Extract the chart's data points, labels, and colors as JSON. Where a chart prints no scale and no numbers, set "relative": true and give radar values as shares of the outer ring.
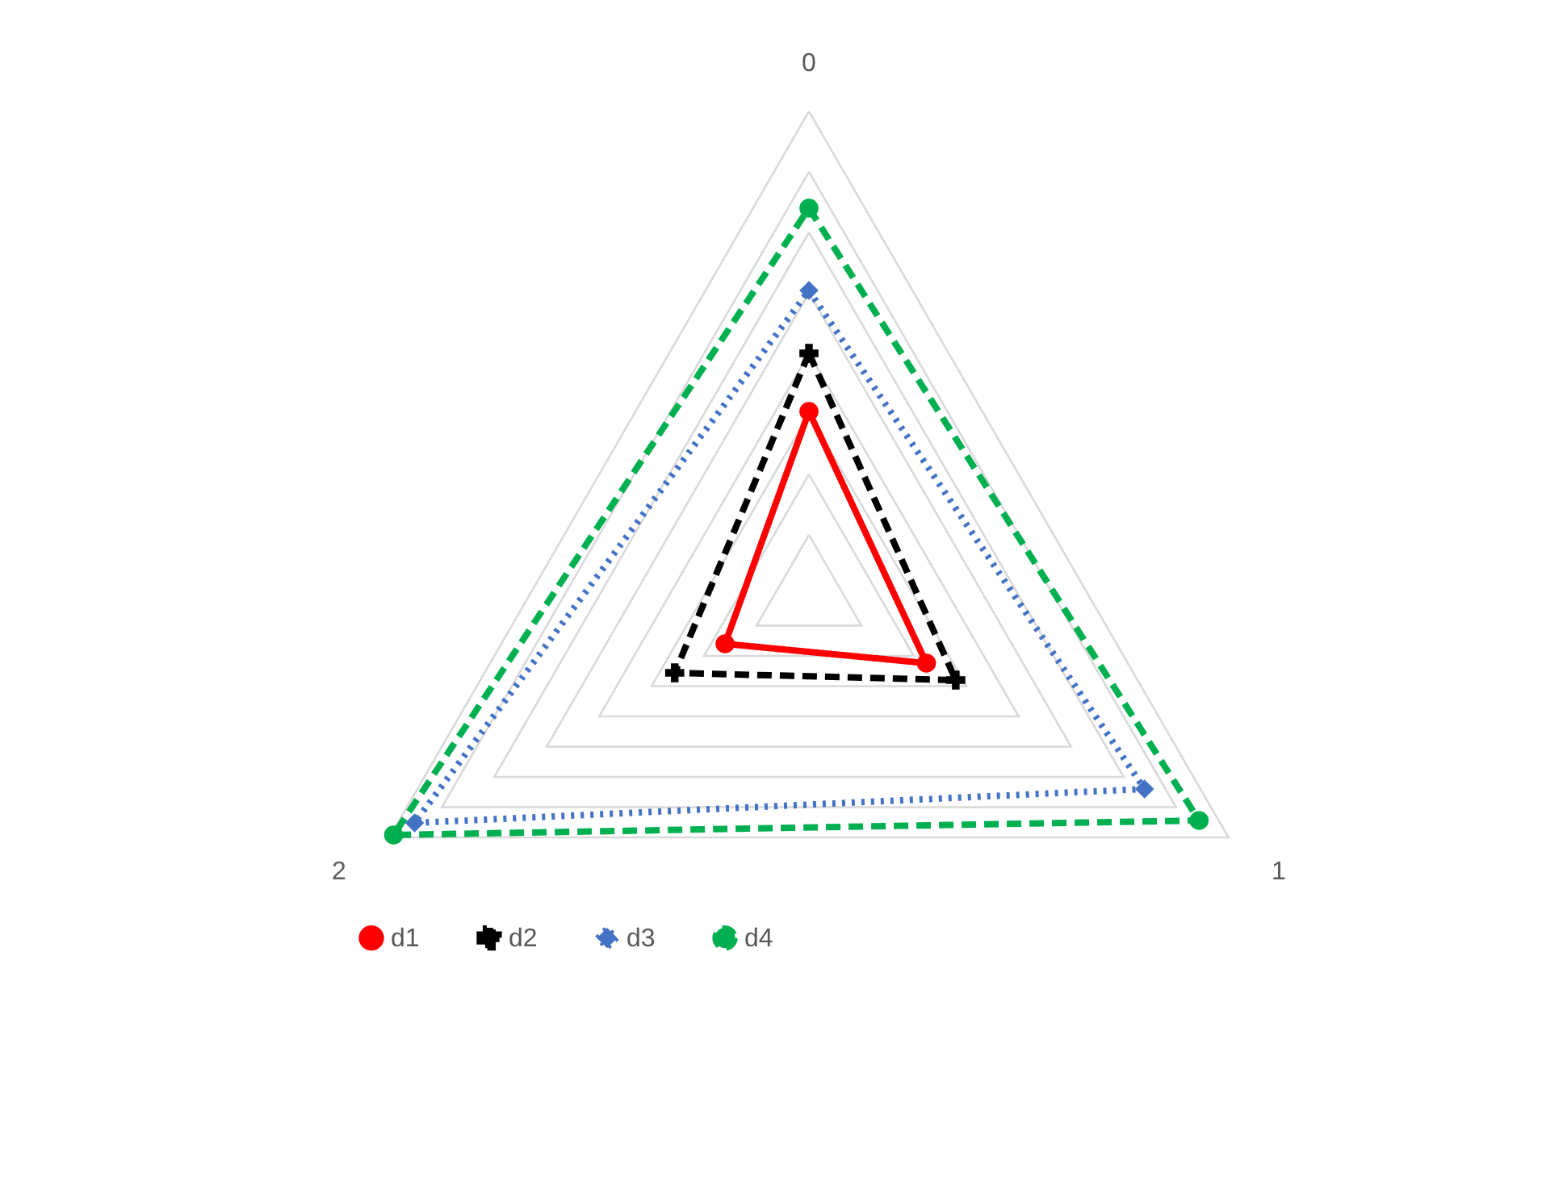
{
  "chart_data": {
    "type": "radar",
    "relative": true,
    "categories": [
      "0",
      "1",
      "2"
    ],
    "grid": true,
    "legend": "bottom",
    "series": [
      {
        "name": "d1",
        "color": "#ff0000",
        "values": [
          0.38,
          0.28,
          0.2
        ],
        "line_style": "solid",
        "marker": "circle"
      },
      {
        "name": "d2",
        "color": "#000000",
        "values": [
          0.5,
          0.35,
          0.32
        ],
        "line_style": "dashed",
        "marker": "cross"
      },
      {
        "name": "d3",
        "color": "#4472c4",
        "values": [
          0.63,
          0.8,
          0.94
        ],
        "line_style": "dotted",
        "marker": "diamond"
      },
      {
        "name": "d4",
        "color": "#00b050",
        "values": [
          0.8,
          0.93,
          0.99
        ],
        "line_style": "dashed",
        "marker": "circle"
      }
    ]
  }
}
